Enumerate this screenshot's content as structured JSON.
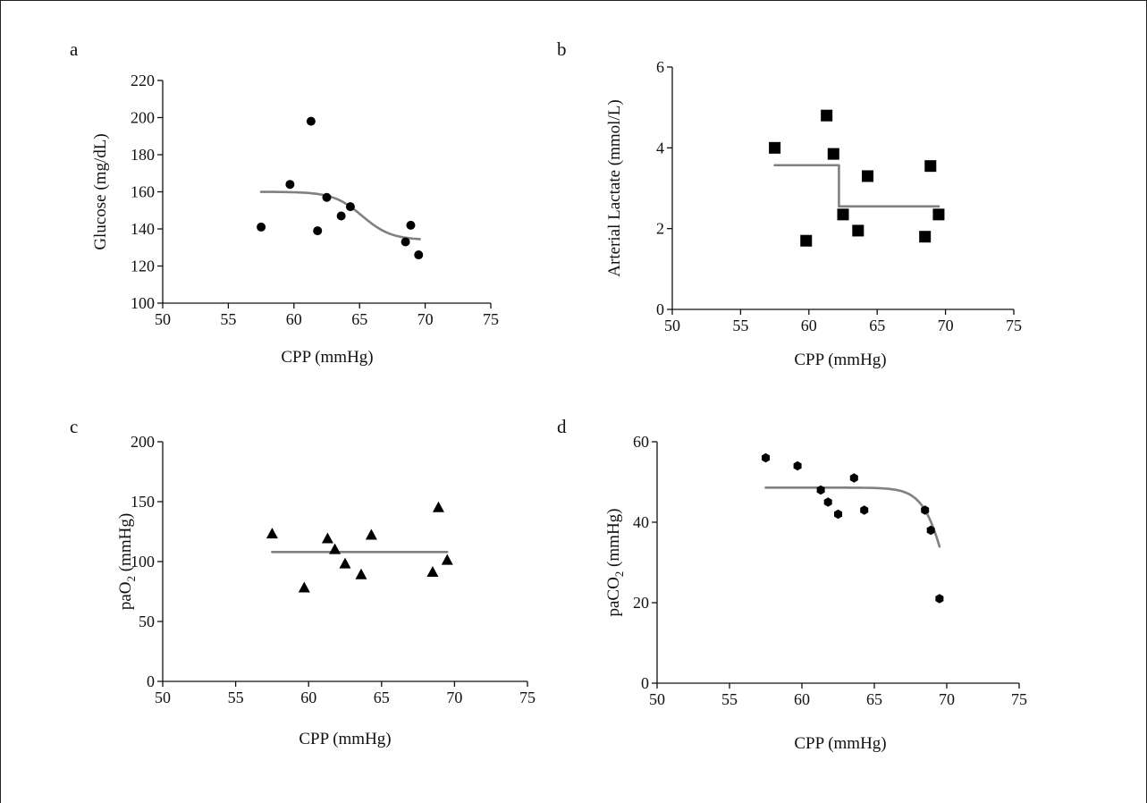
{
  "chart_data": [
    {
      "type": "scatter",
      "panel": "a",
      "xlabel": "CPP (mmHg)",
      "ylabel": "Glucose (mg/dL)",
      "xlim": [
        50,
        75
      ],
      "ylim": [
        100,
        220
      ],
      "xticks": [
        50,
        55,
        60,
        65,
        70,
        75
      ],
      "yticks": [
        100,
        120,
        140,
        160,
        180,
        200,
        220
      ],
      "marker": "circle",
      "points": [
        {
          "x": 57.5,
          "y": 141
        },
        {
          "x": 59.7,
          "y": 164
        },
        {
          "x": 61.3,
          "y": 198
        },
        {
          "x": 61.8,
          "y": 139
        },
        {
          "x": 62.5,
          "y": 157
        },
        {
          "x": 63.6,
          "y": 147
        },
        {
          "x": 64.3,
          "y": 152
        },
        {
          "x": 68.5,
          "y": 133
        },
        {
          "x": 68.9,
          "y": 142
        },
        {
          "x": 69.5,
          "y": 126
        }
      ],
      "fit": {
        "kind": "sigmoid",
        "x_range": [
          57.5,
          69.6
        ],
        "top": 160,
        "bottom": 134,
        "mid": 65.2,
        "slope": 0.9
      }
    },
    {
      "type": "scatter",
      "panel": "b",
      "xlabel": "CPP (mmHg)",
      "ylabel": "Arterial Lactate (mmol/L)",
      "xlim": [
        50,
        75
      ],
      "ylim": [
        0,
        6
      ],
      "xticks": [
        50,
        55,
        60,
        65,
        70,
        75
      ],
      "yticks": [
        0,
        2,
        4,
        6
      ],
      "marker": "square",
      "points": [
        {
          "x": 57.5,
          "y": 4.0
        },
        {
          "x": 59.8,
          "y": 1.7
        },
        {
          "x": 61.3,
          "y": 4.8
        },
        {
          "x": 61.8,
          "y": 3.85
        },
        {
          "x": 62.5,
          "y": 2.35
        },
        {
          "x": 63.6,
          "y": 1.95
        },
        {
          "x": 64.3,
          "y": 3.3
        },
        {
          "x": 68.5,
          "y": 1.8
        },
        {
          "x": 68.9,
          "y": 3.55
        },
        {
          "x": 69.5,
          "y": 2.35
        }
      ],
      "fit": {
        "kind": "step",
        "x_range": [
          57.5,
          69.5
        ],
        "step_x": 62.2,
        "before": 3.57,
        "after": 2.55
      }
    },
    {
      "type": "scatter",
      "panel": "c",
      "xlabel": "CPP (mmHg)",
      "ylabel": "paO2 (mmHg)",
      "xlim": [
        50,
        75
      ],
      "ylim": [
        0,
        200
      ],
      "xticks": [
        50,
        55,
        60,
        65,
        70,
        75
      ],
      "yticks": [
        0,
        50,
        100,
        150,
        200
      ],
      "marker": "triangle",
      "points": [
        {
          "x": 57.5,
          "y": 123
        },
        {
          "x": 59.7,
          "y": 78
        },
        {
          "x": 61.3,
          "y": 119
        },
        {
          "x": 61.8,
          "y": 110
        },
        {
          "x": 62.5,
          "y": 98
        },
        {
          "x": 63.6,
          "y": 89
        },
        {
          "x": 64.3,
          "y": 122
        },
        {
          "x": 68.5,
          "y": 91
        },
        {
          "x": 68.9,
          "y": 145
        },
        {
          "x": 69.5,
          "y": 101
        }
      ],
      "fit": {
        "kind": "flat",
        "x_range": [
          57.5,
          69.5
        ],
        "value": 108
      }
    },
    {
      "type": "scatter",
      "panel": "d",
      "xlabel": "CPP (mmHg)",
      "ylabel": "paCO2 (mmHg)",
      "xlim": [
        50,
        75
      ],
      "ylim": [
        0,
        60
      ],
      "xticks": [
        50,
        55,
        60,
        65,
        70,
        75
      ],
      "yticks": [
        0,
        20,
        40,
        60
      ],
      "marker": "hexagon",
      "points": [
        {
          "x": 57.5,
          "y": 56
        },
        {
          "x": 59.7,
          "y": 54
        },
        {
          "x": 61.3,
          "y": 48
        },
        {
          "x": 61.8,
          "y": 45
        },
        {
          "x": 62.5,
          "y": 42
        },
        {
          "x": 63.6,
          "y": 51
        },
        {
          "x": 64.3,
          "y": 43
        },
        {
          "x": 68.5,
          "y": 43
        },
        {
          "x": 68.9,
          "y": 38
        },
        {
          "x": 69.5,
          "y": 21
        }
      ],
      "fit": {
        "kind": "sigmoid",
        "x_range": [
          57.5,
          69.5
        ],
        "top": 48.6,
        "bottom": 0,
        "mid": 70.2,
        "slope": 1.2
      }
    }
  ]
}
